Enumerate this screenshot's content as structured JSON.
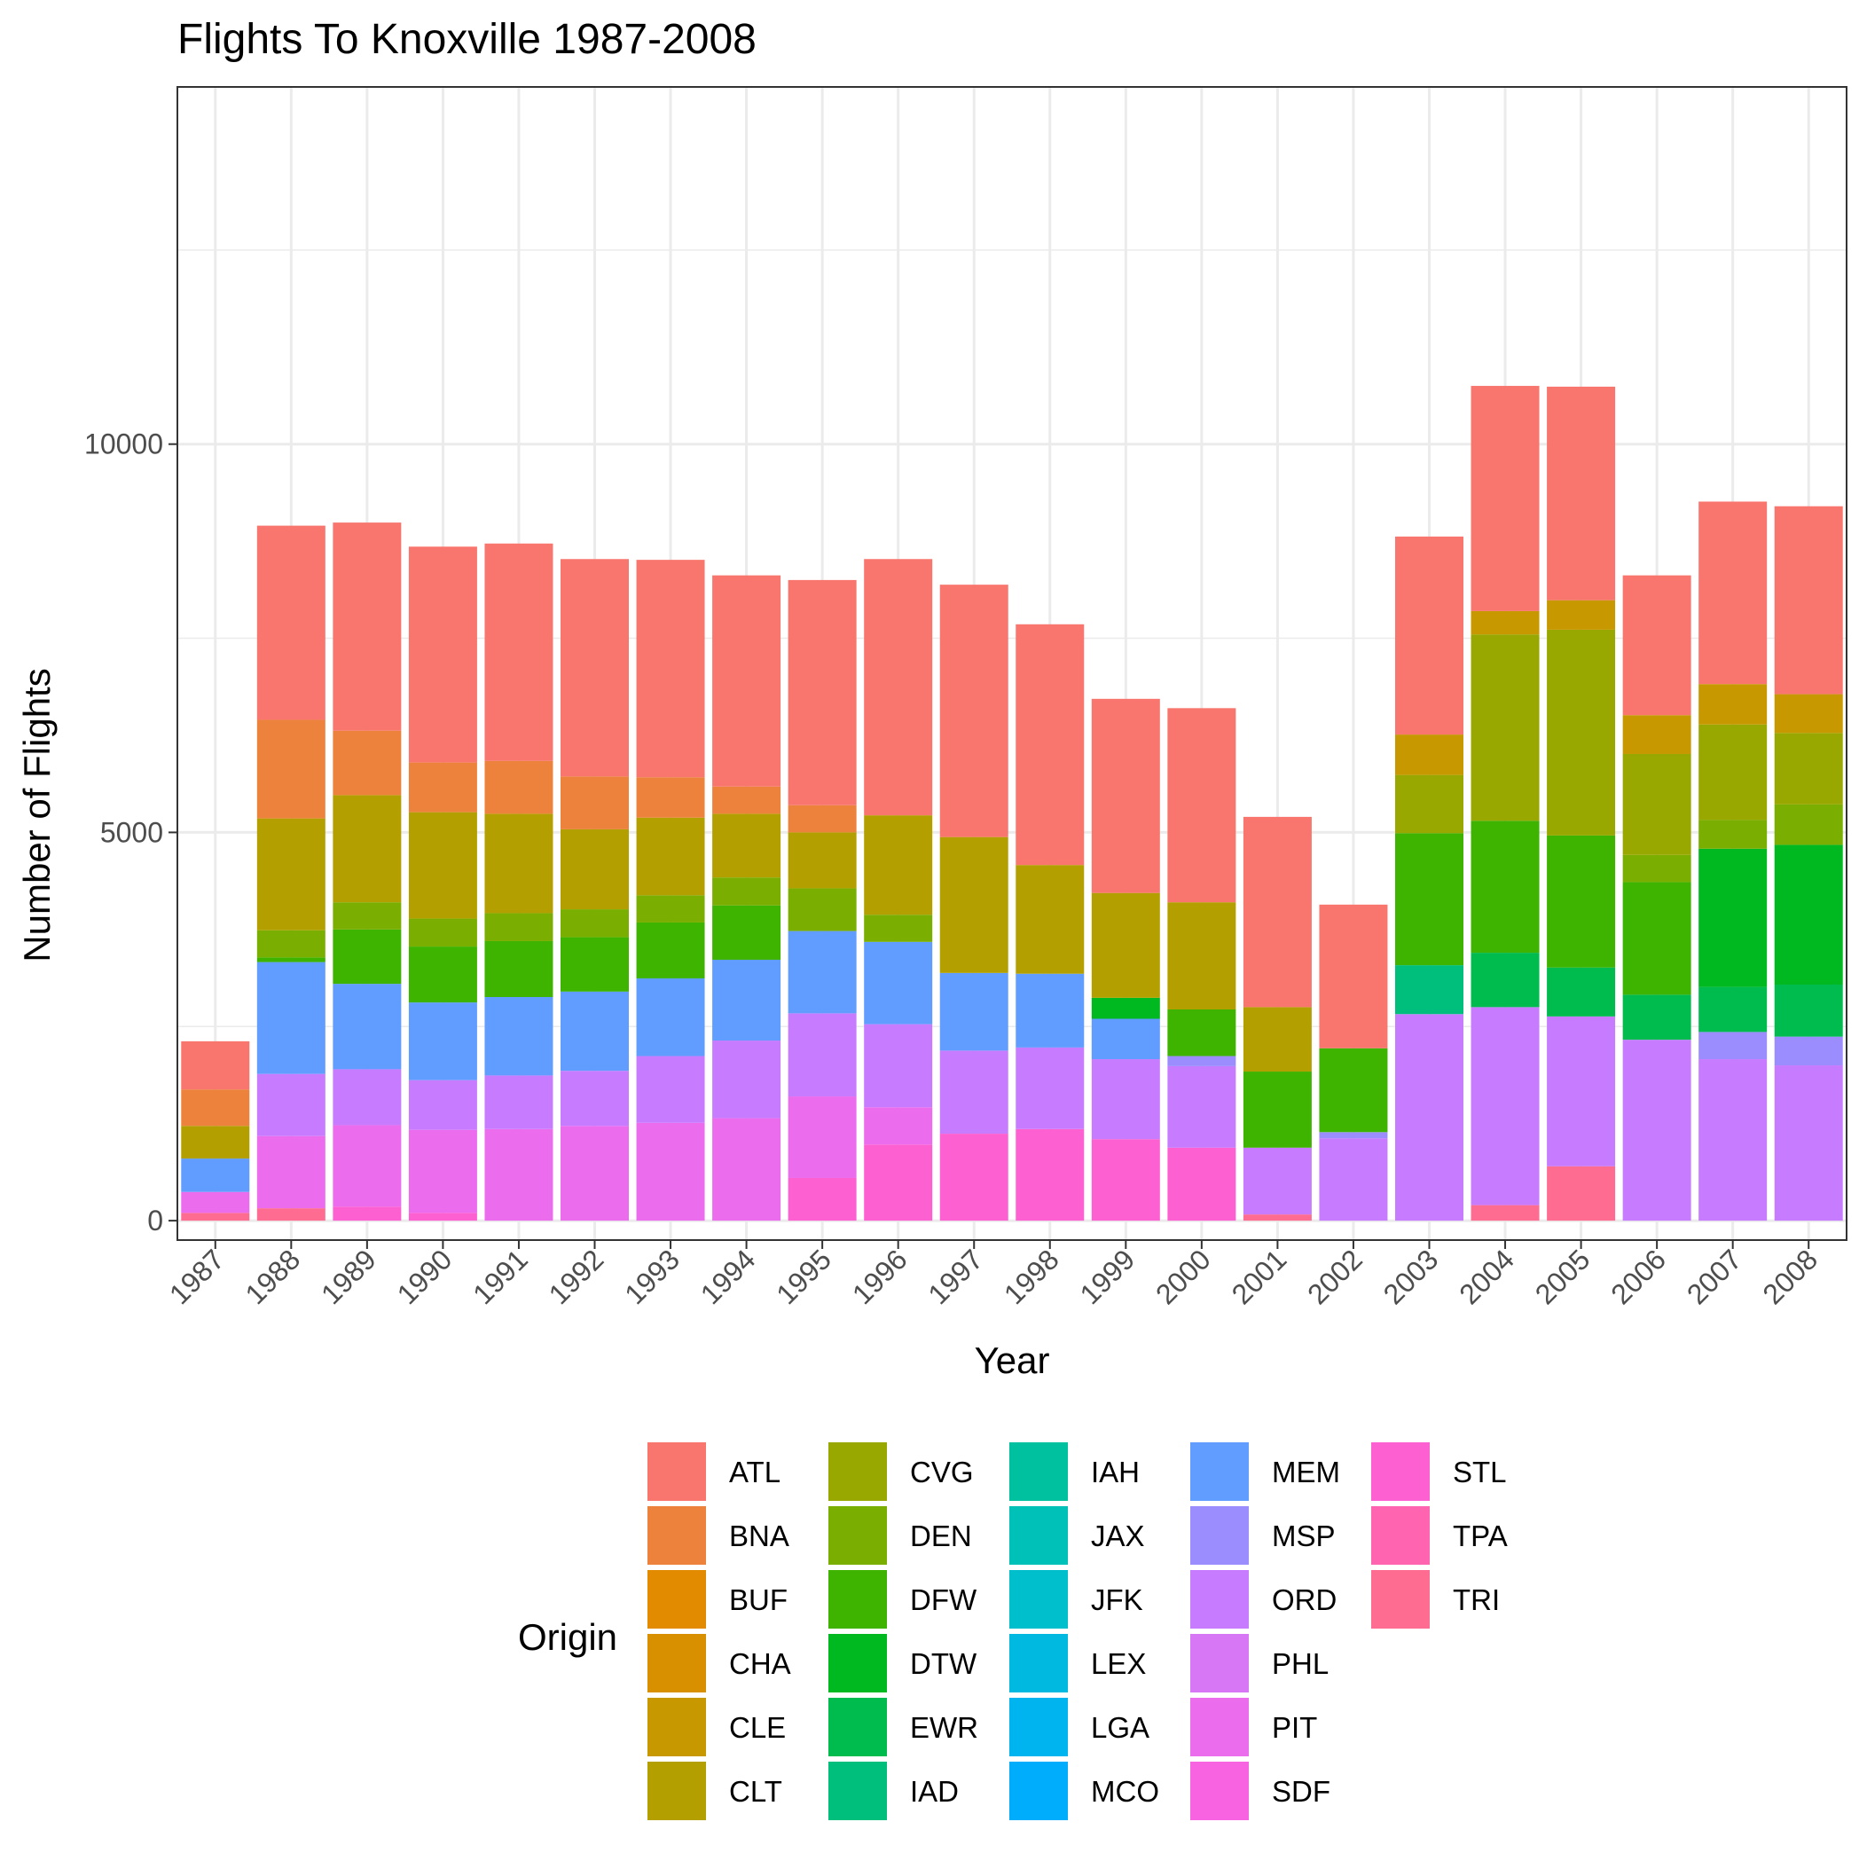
{
  "chart_data": {
    "type": "bar",
    "stacked": true,
    "title": "Flights To Knoxville 1987-2008",
    "xlabel": "Year",
    "ylabel": "Number of Flights",
    "ylim": [
      -250,
      14600
    ],
    "yticks": [
      0,
      5000,
      10000
    ],
    "grid": true,
    "legend_title": "Origin",
    "legend_position": "bottom",
    "categories": [
      "1987",
      "1988",
      "1989",
      "1990",
      "1991",
      "1992",
      "1993",
      "1994",
      "1995",
      "1996",
      "1997",
      "1998",
      "1999",
      "2000",
      "2001",
      "2002",
      "2003",
      "2004",
      "2005",
      "2006",
      "2007",
      "2008"
    ],
    "series": [
      {
        "name": "ATL",
        "color": "#F8766D",
        "values": [
          620,
          2500,
          2680,
          2780,
          2800,
          2800,
          2800,
          2720,
          2900,
          3300,
          3250,
          3100,
          2500,
          2500,
          2450,
          1850,
          2550,
          2900,
          2750,
          1800,
          2350,
          2420
        ]
      },
      {
        "name": "BNA",
        "color": "#EC823C",
        "values": [
          470,
          1270,
          830,
          640,
          680,
          680,
          520,
          350,
          350,
          0,
          0,
          0,
          0,
          0,
          0,
          0,
          0,
          0,
          0,
          0,
          0,
          0
        ]
      },
      {
        "name": "BUF",
        "color": "#E28A00",
        "values": [
          0,
          0,
          0,
          0,
          0,
          0,
          0,
          0,
          0,
          0,
          0,
          0,
          0,
          0,
          0,
          0,
          0,
          0,
          0,
          0,
          0,
          0
        ]
      },
      {
        "name": "CHA",
        "color": "#D89000",
        "values": [
          0,
          0,
          0,
          0,
          0,
          0,
          0,
          0,
          0,
          0,
          0,
          0,
          0,
          0,
          0,
          0,
          0,
          0,
          0,
          0,
          0,
          0
        ]
      },
      {
        "name": "CLE",
        "color": "#C79800",
        "values": [
          0,
          0,
          0,
          0,
          0,
          0,
          0,
          0,
          0,
          0,
          0,
          0,
          0,
          0,
          0,
          0,
          520,
          300,
          380,
          500,
          520,
          500
        ]
      },
      {
        "name": "CLT",
        "color": "#B3A000",
        "values": [
          420,
          1440,
          1380,
          1370,
          1280,
          1030,
          1000,
          820,
          720,
          1280,
          1750,
          1400,
          1350,
          1380,
          830,
          0,
          0,
          0,
          0,
          0,
          0,
          0
        ]
      },
      {
        "name": "CVG",
        "color": "#99A800",
        "values": [
          0,
          0,
          0,
          0,
          0,
          0,
          0,
          0,
          0,
          0,
          0,
          0,
          0,
          0,
          0,
          0,
          750,
          2400,
          2650,
          1300,
          1230,
          920
        ]
      },
      {
        "name": "DEN",
        "color": "#7AAE00",
        "values": [
          0,
          350,
          350,
          360,
          360,
          360,
          350,
          360,
          550,
          350,
          0,
          0,
          0,
          0,
          0,
          0,
          0,
          0,
          0,
          350,
          370,
          520
        ]
      },
      {
        "name": "DFW",
        "color": "#3EB300",
        "values": [
          0,
          60,
          700,
          720,
          720,
          700,
          720,
          700,
          0,
          0,
          0,
          0,
          0,
          600,
          980,
          1080,
          1700,
          1700,
          1700,
          1450,
          0,
          0
        ]
      },
      {
        "name": "DTW",
        "color": "#00B81F",
        "values": [
          0,
          0,
          0,
          0,
          0,
          0,
          0,
          0,
          0,
          0,
          0,
          0,
          270,
          0,
          0,
          0,
          0,
          0,
          0,
          0,
          1780,
          1800
        ]
      },
      {
        "name": "EWR",
        "color": "#00BB4E",
        "values": [
          0,
          0,
          0,
          0,
          0,
          0,
          0,
          0,
          0,
          0,
          0,
          0,
          0,
          0,
          0,
          0,
          0,
          700,
          630,
          580,
          580,
          670
        ]
      },
      {
        "name": "IAD",
        "color": "#00BF7D",
        "values": [
          0,
          0,
          0,
          0,
          0,
          0,
          0,
          0,
          0,
          0,
          0,
          0,
          0,
          0,
          0,
          0,
          630,
          0,
          0,
          0,
          0,
          0
        ]
      },
      {
        "name": "IAH",
        "color": "#00C19F",
        "values": [
          0,
          0,
          0,
          0,
          0,
          0,
          0,
          0,
          0,
          0,
          0,
          0,
          0,
          0,
          0,
          0,
          0,
          0,
          0,
          0,
          0,
          0
        ]
      },
      {
        "name": "JAX",
        "color": "#00C1B8",
        "values": [
          0,
          0,
          0,
          0,
          0,
          0,
          0,
          0,
          0,
          0,
          0,
          0,
          0,
          0,
          0,
          0,
          0,
          0,
          0,
          0,
          0,
          0
        ]
      },
      {
        "name": "JFK",
        "color": "#00BFCC",
        "values": [
          0,
          0,
          0,
          0,
          0,
          0,
          0,
          0,
          0,
          0,
          0,
          0,
          0,
          0,
          0,
          0,
          0,
          0,
          0,
          0,
          0,
          0
        ]
      },
      {
        "name": "LEX",
        "color": "#00B9E0",
        "values": [
          0,
          0,
          0,
          0,
          0,
          0,
          0,
          0,
          0,
          0,
          0,
          0,
          0,
          0,
          0,
          0,
          0,
          0,
          0,
          0,
          0,
          0
        ]
      },
      {
        "name": "LGA",
        "color": "#00B4EF",
        "values": [
          0,
          0,
          0,
          0,
          0,
          0,
          0,
          0,
          0,
          0,
          0,
          0,
          0,
          0,
          0,
          0,
          0,
          0,
          0,
          0,
          0,
          0
        ]
      },
      {
        "name": "MCO",
        "color": "#00ACFC",
        "values": [
          0,
          0,
          0,
          0,
          0,
          0,
          0,
          0,
          0,
          0,
          0,
          0,
          0,
          0,
          0,
          0,
          0,
          0,
          0,
          0,
          0,
          0
        ]
      },
      {
        "name": "MEM",
        "color": "#619CFF",
        "values": [
          430,
          1440,
          1100,
          1000,
          1010,
          1020,
          1000,
          1040,
          1060,
          1060,
          1000,
          950,
          520,
          0,
          0,
          0,
          0,
          0,
          0,
          0,
          0,
          0
        ]
      },
      {
        "name": "MSP",
        "color": "#9C8DFF",
        "values": [
          0,
          0,
          0,
          0,
          0,
          0,
          0,
          0,
          0,
          0,
          0,
          0,
          0,
          130,
          0,
          80,
          0,
          0,
          0,
          0,
          350,
          370
        ]
      },
      {
        "name": "ORD",
        "color": "#C77CFF",
        "values": [
          0,
          800,
          720,
          640,
          690,
          710,
          860,
          1000,
          1070,
          1070,
          1070,
          1050,
          1030,
          1050,
          860,
          1060,
          2660,
          2550,
          1930,
          2330,
          2080,
          2000
        ]
      },
      {
        "name": "PHL",
        "color": "#D877F5",
        "values": [
          0,
          0,
          0,
          0,
          0,
          0,
          0,
          0,
          0,
          0,
          0,
          0,
          0,
          0,
          0,
          0,
          0,
          0,
          0,
          0,
          0,
          0
        ]
      },
      {
        "name": "PIT",
        "color": "#EC6CEE",
        "values": [
          270,
          930,
          1050,
          1070,
          1180,
          1220,
          1260,
          1320,
          1050,
          480,
          0,
          0,
          0,
          0,
          0,
          0,
          0,
          0,
          0,
          0,
          0,
          0
        ]
      },
      {
        "name": "SDF",
        "color": "#F763E0",
        "values": [
          0,
          0,
          0,
          0,
          0,
          0,
          0,
          0,
          0,
          0,
          0,
          0,
          0,
          0,
          0,
          0,
          0,
          0,
          0,
          0,
          0,
          0
        ]
      },
      {
        "name": "STL",
        "color": "#FD61D1",
        "values": [
          0,
          0,
          180,
          100,
          0,
          0,
          0,
          0,
          550,
          980,
          1120,
          1180,
          1050,
          940,
          0,
          0,
          0,
          0,
          0,
          0,
          0,
          0
        ]
      },
      {
        "name": "TPA",
        "color": "#FF64B0",
        "values": [
          0,
          0,
          0,
          0,
          0,
          0,
          0,
          0,
          0,
          0,
          0,
          0,
          0,
          0,
          0,
          0,
          0,
          0,
          0,
          0,
          0,
          0
        ]
      },
      {
        "name": "TRI",
        "color": "#FF6C91",
        "values": [
          100,
          160,
          0,
          0,
          0,
          0,
          0,
          0,
          0,
          0,
          0,
          0,
          0,
          0,
          80,
          0,
          0,
          200,
          700,
          0,
          0,
          0
        ]
      }
    ]
  }
}
